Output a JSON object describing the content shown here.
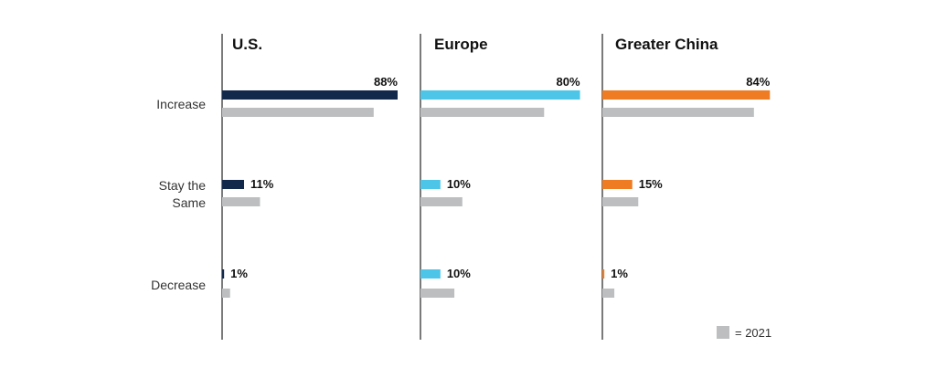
{
  "chart_data": {
    "type": "bar",
    "orientation": "horizontal",
    "categories": [
      "Increase",
      "Stay the Same",
      "Decrease"
    ],
    "panels": [
      {
        "title": "U.S.",
        "color": "#13294b",
        "series": [
          {
            "values": [
              88,
              11,
              1
            ],
            "labels": [
              "88%",
              "11%",
              "1%"
            ]
          },
          {
            "name": "2021",
            "values": [
              76,
              19,
              4
            ]
          }
        ]
      },
      {
        "title": "Europe",
        "color": "#4cc5e9",
        "series": [
          {
            "values": [
              80,
              10,
              10
            ],
            "labels": [
              "80%",
              "10%",
              "10%"
            ]
          },
          {
            "name": "2021",
            "values": [
              62,
              21,
              17
            ]
          }
        ]
      },
      {
        "title": "Greater China",
        "color": "#ef7b22",
        "series": [
          {
            "values": [
              84,
              15,
              1
            ],
            "labels": [
              "84%",
              "15%",
              "1%"
            ]
          },
          {
            "name": "2021",
            "values": [
              76,
              18,
              6
            ]
          }
        ]
      }
    ],
    "xlim": [
      0,
      88
    ],
    "grid": false,
    "legend": {
      "position": "bottom-right",
      "text": "= 2021",
      "color": "#bcbec0"
    }
  }
}
